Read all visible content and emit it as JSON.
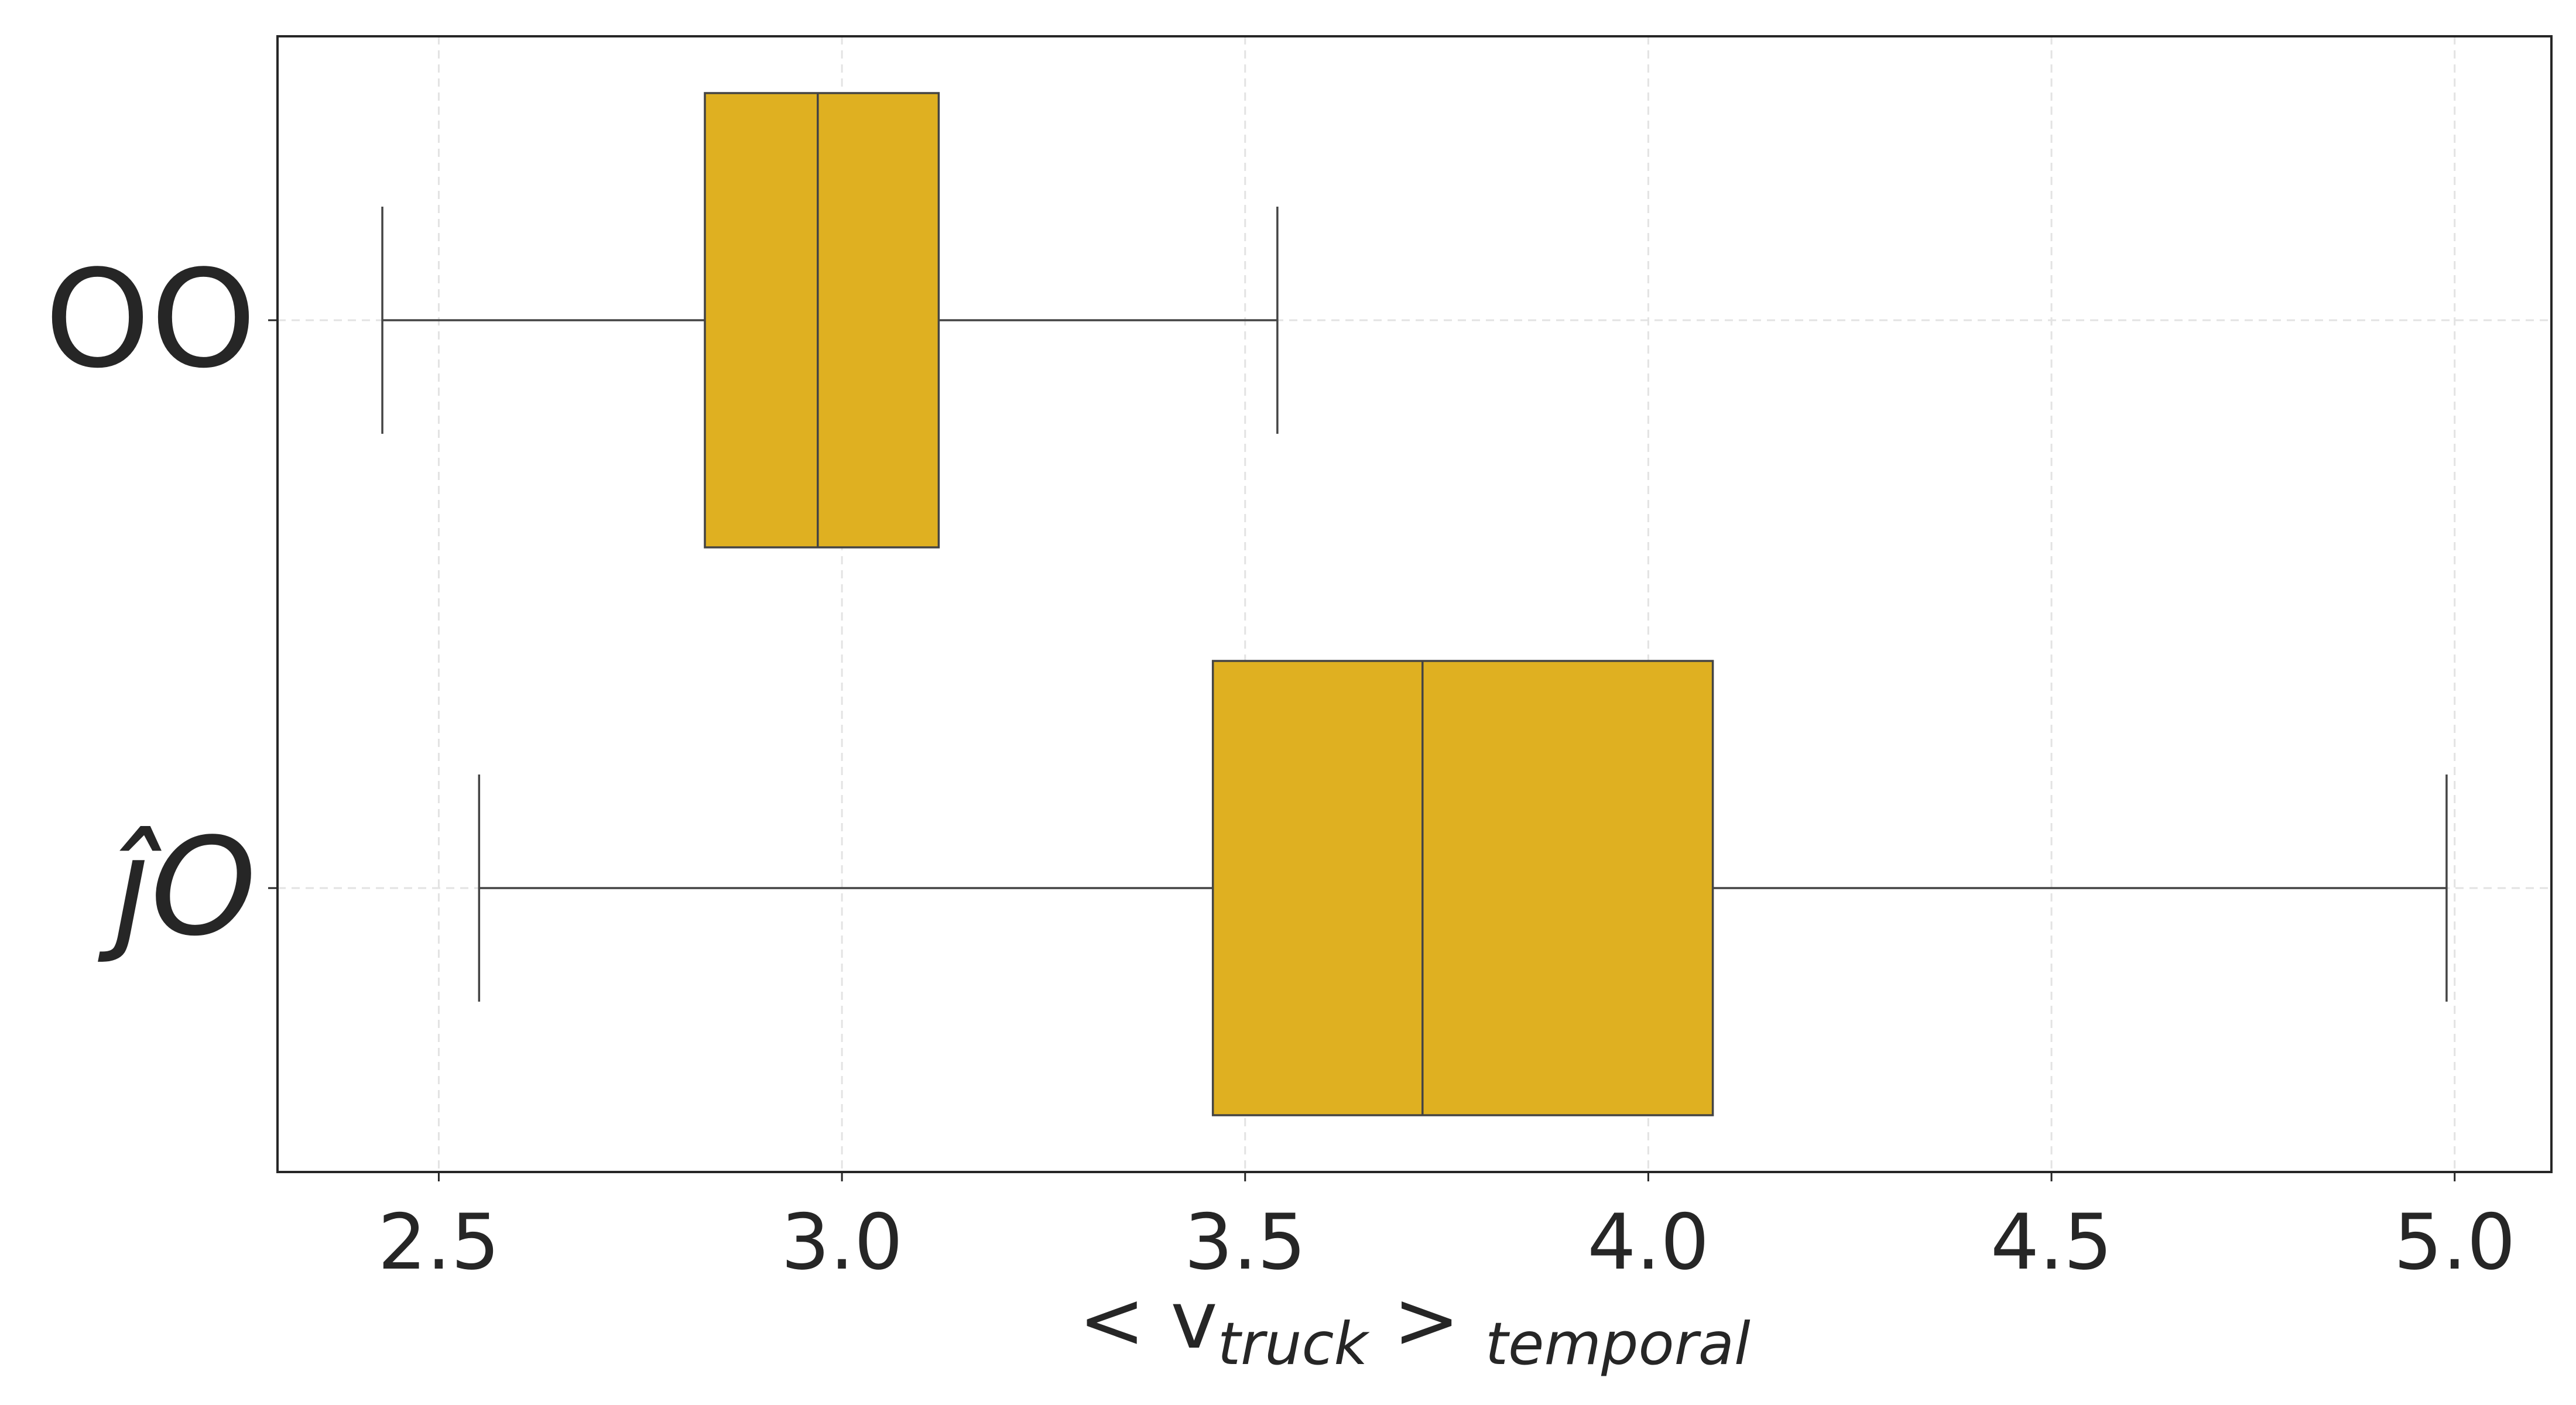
{
  "chart_data": {
    "type": "box",
    "orientation": "horizontal",
    "title": "",
    "xlabel": {
      "prefix": "< v",
      "subscript": "truck",
      "middle": " > ",
      "suffix_subscript": "temporal"
    },
    "ylabel": "",
    "xlim": [
      2.3,
      5.12
    ],
    "xticks": [
      "2.5",
      "3.0",
      "3.5",
      "4.0",
      "4.5",
      "5.0"
    ],
    "xtick_values": [
      2.5,
      3.0,
      3.5,
      4.0,
      4.5,
      5.0
    ],
    "grid": true,
    "color": "#DFB021",
    "edge_color": "#444444",
    "categories": [
      {
        "label": "OO",
        "style": "normal",
        "whisker_low": 2.43,
        "q1": 2.83,
        "median": 2.97,
        "q3": 3.12,
        "whisker_high": 3.54
      },
      {
        "label": "ĵO",
        "style": "italic",
        "whisker_low": 2.55,
        "q1": 3.46,
        "median": 3.72,
        "q3": 4.08,
        "whisker_high": 4.99
      }
    ]
  }
}
